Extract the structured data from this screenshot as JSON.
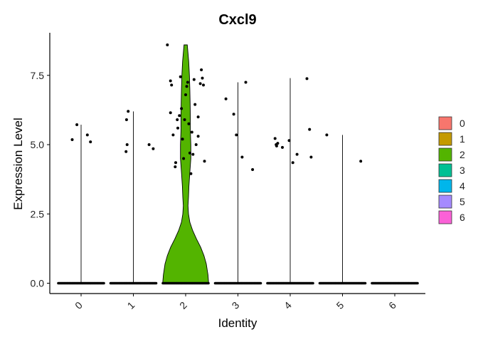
{
  "chart_data": {
    "type": "violin",
    "title": "Cxcl9",
    "xlabel": "Identity",
    "ylabel": "Expression Level",
    "categories": [
      "0",
      "1",
      "2",
      "3",
      "4",
      "5",
      "6"
    ],
    "colors": [
      "#F8766D",
      "#C49A00",
      "#53B400",
      "#00C094",
      "#00B6EB",
      "#A58AFF",
      "#FB61D7"
    ],
    "ylim": [
      0,
      8.7
    ],
    "yticks": [
      0.0,
      2.5,
      5.0,
      7.5
    ],
    "ytick_labels": [
      "0.0",
      "2.5",
      "5.0",
      "7.5"
    ],
    "legend_position": "right",
    "max_values": [
      5.72,
      6.2,
      8.6,
      7.25,
      7.4,
      5.35,
      0.0
    ],
    "violin_profile_cluster_2": [
      [
        0.0,
        0.98
      ],
      [
        0.3,
        0.95
      ],
      [
        0.7,
        0.88
      ],
      [
        1.0,
        0.78
      ],
      [
        1.3,
        0.64
      ],
      [
        1.6,
        0.46
      ],
      [
        1.9,
        0.3
      ],
      [
        2.2,
        0.18
      ],
      [
        2.5,
        0.12
      ],
      [
        2.8,
        0.1
      ],
      [
        3.1,
        0.12
      ],
      [
        3.5,
        0.14
      ],
      [
        4.0,
        0.18
      ],
      [
        4.5,
        0.22
      ],
      [
        5.0,
        0.22
      ],
      [
        5.5,
        0.2
      ],
      [
        6.0,
        0.2
      ],
      [
        6.5,
        0.19
      ],
      [
        7.0,
        0.18
      ],
      [
        7.5,
        0.16
      ],
      [
        8.0,
        0.13
      ],
      [
        8.3,
        0.1
      ],
      [
        8.6,
        0.07
      ]
    ],
    "points": [
      {
        "cluster": 0,
        "dx": -0.17,
        "y": 5.18
      },
      {
        "cluster": 0,
        "dx": -0.08,
        "y": 5.72
      },
      {
        "cluster": 0,
        "dx": 0.12,
        "y": 5.35
      },
      {
        "cluster": 0,
        "dx": 0.18,
        "y": 5.1
      },
      {
        "cluster": 1,
        "dx": -0.14,
        "y": 4.75
      },
      {
        "cluster": 1,
        "dx": -0.12,
        "y": 5.0
      },
      {
        "cluster": 1,
        "dx": -0.13,
        "y": 5.9
      },
      {
        "cluster": 1,
        "dx": -0.1,
        "y": 6.2
      },
      {
        "cluster": 1,
        "dx": 0.3,
        "y": 5.0
      },
      {
        "cluster": 1,
        "dx": 0.38,
        "y": 4.85
      },
      {
        "cluster": 2,
        "dx": -0.35,
        "y": 8.6
      },
      {
        "cluster": 2,
        "dx": -0.29,
        "y": 7.3
      },
      {
        "cluster": 2,
        "dx": -0.27,
        "y": 7.15
      },
      {
        "cluster": 2,
        "dx": -0.29,
        "y": 6.15
      },
      {
        "cluster": 2,
        "dx": -0.24,
        "y": 5.35
      },
      {
        "cluster": 2,
        "dx": -0.2,
        "y": 4.2
      },
      {
        "cluster": 2,
        "dx": -0.19,
        "y": 4.35
      },
      {
        "cluster": 2,
        "dx": -0.16,
        "y": 5.9
      },
      {
        "cluster": 2,
        "dx": -0.15,
        "y": 5.6
      },
      {
        "cluster": 2,
        "dx": -0.12,
        "y": 6.05
      },
      {
        "cluster": 2,
        "dx": -0.1,
        "y": 7.45
      },
      {
        "cluster": 2,
        "dx": -0.08,
        "y": 6.3
      },
      {
        "cluster": 2,
        "dx": -0.06,
        "y": 5.2
      },
      {
        "cluster": 2,
        "dx": -0.04,
        "y": 4.5
      },
      {
        "cluster": 2,
        "dx": -0.02,
        "y": 5.9
      },
      {
        "cluster": 2,
        "dx": 0.0,
        "y": 6.8
      },
      {
        "cluster": 2,
        "dx": 0.02,
        "y": 7.1
      },
      {
        "cluster": 2,
        "dx": 0.04,
        "y": 7.25
      },
      {
        "cluster": 2,
        "dx": 0.06,
        "y": 5.75
      },
      {
        "cluster": 2,
        "dx": 0.08,
        "y": 4.7
      },
      {
        "cluster": 2,
        "dx": 0.1,
        "y": 3.95
      },
      {
        "cluster": 2,
        "dx": 0.12,
        "y": 5.45
      },
      {
        "cluster": 2,
        "dx": 0.14,
        "y": 4.65
      },
      {
        "cluster": 2,
        "dx": 0.16,
        "y": 7.35
      },
      {
        "cluster": 2,
        "dx": 0.18,
        "y": 6.45
      },
      {
        "cluster": 2,
        "dx": 0.2,
        "y": 5.0
      },
      {
        "cluster": 2,
        "dx": 0.24,
        "y": 5.3
      },
      {
        "cluster": 2,
        "dx": 0.28,
        "y": 7.2
      },
      {
        "cluster": 2,
        "dx": 0.3,
        "y": 7.7
      },
      {
        "cluster": 2,
        "dx": 0.32,
        "y": 7.4
      },
      {
        "cluster": 2,
        "dx": 0.34,
        "y": 7.15
      },
      {
        "cluster": 2,
        "dx": 0.36,
        "y": 4.4
      },
      {
        "cluster": 2,
        "dx": 0.24,
        "y": 6.0
      },
      {
        "cluster": 3,
        "dx": -0.23,
        "y": 6.65
      },
      {
        "cluster": 3,
        "dx": -0.08,
        "y": 6.1
      },
      {
        "cluster": 3,
        "dx": -0.03,
        "y": 5.35
      },
      {
        "cluster": 3,
        "dx": 0.08,
        "y": 4.55
      },
      {
        "cluster": 3,
        "dx": 0.15,
        "y": 7.25
      },
      {
        "cluster": 3,
        "dx": 0.28,
        "y": 4.1
      },
      {
        "cluster": 4,
        "dx": -0.29,
        "y": 5.22
      },
      {
        "cluster": 4,
        "dx": -0.27,
        "y": 5.0
      },
      {
        "cluster": 4,
        "dx": -0.26,
        "y": 4.95
      },
      {
        "cluster": 4,
        "dx": -0.24,
        "y": 5.05
      },
      {
        "cluster": 4,
        "dx": -0.15,
        "y": 4.9
      },
      {
        "cluster": 4,
        "dx": -0.02,
        "y": 5.15
      },
      {
        "cluster": 4,
        "dx": 0.05,
        "y": 4.35
      },
      {
        "cluster": 4,
        "dx": 0.13,
        "y": 4.65
      },
      {
        "cluster": 4,
        "dx": 0.32,
        "y": 7.38
      },
      {
        "cluster": 4,
        "dx": 0.37,
        "y": 5.55
      },
      {
        "cluster": 4,
        "dx": 0.4,
        "y": 4.55
      },
      {
        "cluster": 5,
        "dx": -0.3,
        "y": 5.35
      },
      {
        "cluster": 5,
        "dx": 0.35,
        "y": 4.4
      }
    ]
  }
}
